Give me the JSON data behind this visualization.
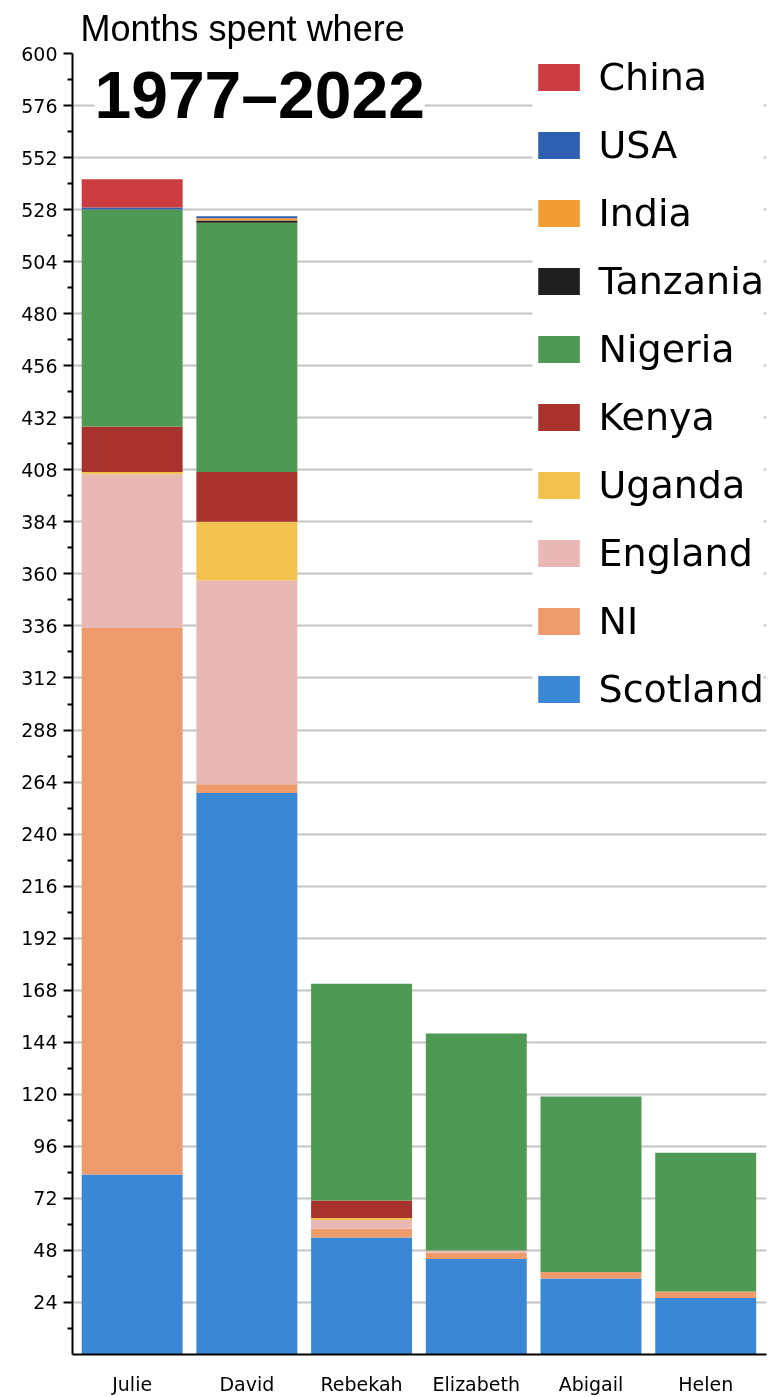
{
  "chart_data": {
    "type": "bar",
    "title": "Months spent where",
    "subtitle": "1977–2022",
    "categories": [
      "Julie",
      "David",
      "Rebekah",
      "Elizabeth",
      "Abigail",
      "Helen"
    ],
    "stacked": true,
    "series": [
      {
        "name": "Scotland",
        "color": "#3a87d6",
        "values": [
          83,
          259,
          54,
          44,
          35,
          26
        ]
      },
      {
        "name": "NI",
        "color": "#ee9a6a",
        "values": [
          252,
          4,
          4,
          3,
          3,
          3
        ]
      },
      {
        "name": "England",
        "color": "#e9b8b5",
        "values": [
          71,
          94,
          4,
          1,
          0,
          0
        ]
      },
      {
        "name": "Uganda",
        "color": "#f2c14e",
        "values": [
          1,
          27,
          1,
          0,
          0,
          0
        ]
      },
      {
        "name": "Kenya",
        "color": "#a8322c",
        "values": [
          21,
          23,
          8,
          0,
          0,
          0
        ]
      },
      {
        "name": "Nigeria",
        "color": "#4e9a55",
        "values": [
          100,
          115,
          100,
          100,
          81,
          64
        ]
      },
      {
        "name": "Tanzania",
        "color": "#1f1f1f",
        "values": [
          0,
          1,
          0,
          0,
          0,
          0
        ]
      },
      {
        "name": "India",
        "color": "#f39c33",
        "values": [
          0,
          1,
          0,
          0,
          0,
          0
        ]
      },
      {
        "name": "USA",
        "color": "#2f5fb0",
        "values": [
          1,
          1,
          0,
          0,
          0,
          0
        ]
      },
      {
        "name": "China",
        "color": "#cc3b3f",
        "values": [
          13,
          0,
          0,
          0,
          0,
          0
        ]
      }
    ],
    "ylim": [
      0,
      600
    ],
    "yticks": [
      24,
      48,
      72,
      96,
      120,
      144,
      168,
      192,
      216,
      240,
      264,
      288,
      312,
      336,
      360,
      384,
      408,
      432,
      456,
      480,
      504,
      528,
      552,
      576,
      600
    ],
    "grid": "y",
    "legend": "top right"
  }
}
